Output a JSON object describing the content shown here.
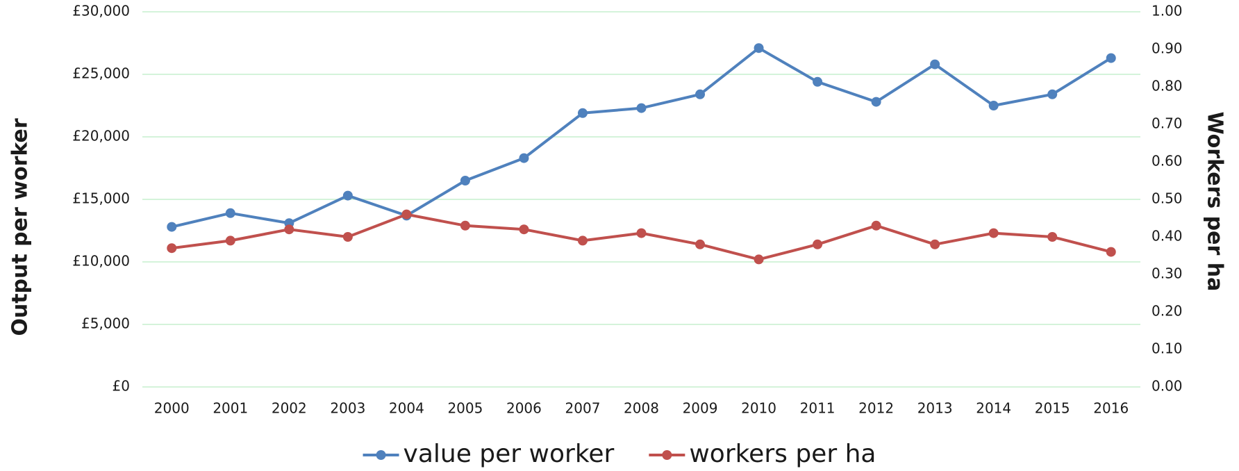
{
  "chart_data": {
    "type": "line",
    "y_label": "Output per worker",
    "y2_label": "Workers per ha",
    "categories": [
      "2000",
      "2001",
      "2002",
      "2003",
      "2004",
      "2005",
      "2006",
      "2007",
      "2008",
      "2009",
      "2010",
      "2011",
      "2012",
      "2013",
      "2014",
      "2015",
      "2016"
    ],
    "series": [
      {
        "name": "value per worker",
        "color": "#4f81bd",
        "values": [
          12800,
          13900,
          13100,
          15300,
          13700,
          16500,
          18300,
          21900,
          22300,
          23400,
          27100,
          24400,
          22800,
          25800,
          22500,
          23400,
          26300
        ]
      },
      {
        "name": "workers per ha",
        "color": "#c0504d",
        "axis": "y2",
        "values": [
          0.37,
          0.39,
          0.42,
          0.4,
          0.46,
          0.43,
          0.42,
          0.39,
          0.41,
          0.38,
          0.34,
          0.38,
          0.43,
          0.38,
          0.41,
          0.4,
          0.36
        ]
      }
    ],
    "ylim": [
      0,
      30000
    ],
    "yticks": [
      {
        "value": 0,
        "label": "£0"
      },
      {
        "value": 5000,
        "label": "£5,000"
      },
      {
        "value": 10000,
        "label": "£10,000"
      },
      {
        "value": 15000,
        "label": "£15,000"
      },
      {
        "value": 20000,
        "label": "£20,000"
      },
      {
        "value": 25000,
        "label": "£25,000"
      },
      {
        "value": 30000,
        "label": "£30,000"
      }
    ],
    "y2lim": [
      0,
      1
    ],
    "y2ticks": [
      {
        "value": 0,
        "label": "0.00"
      },
      {
        "value": 0.1,
        "label": "0.10"
      },
      {
        "value": 0.2,
        "label": "0.20"
      },
      {
        "value": 0.3,
        "label": "0.30"
      },
      {
        "value": 0.4,
        "label": "0.40"
      },
      {
        "value": 0.5,
        "label": "0.50"
      },
      {
        "value": 0.6,
        "label": "0.60"
      },
      {
        "value": 0.7,
        "label": "0.70"
      },
      {
        "value": 0.8,
        "label": "0.80"
      },
      {
        "value": 0.9,
        "label": "0.90"
      },
      {
        "value": 1,
        "label": "1.00"
      }
    ],
    "grid": true,
    "grid_color": "#c6efce",
    "legend": "bottom"
  }
}
